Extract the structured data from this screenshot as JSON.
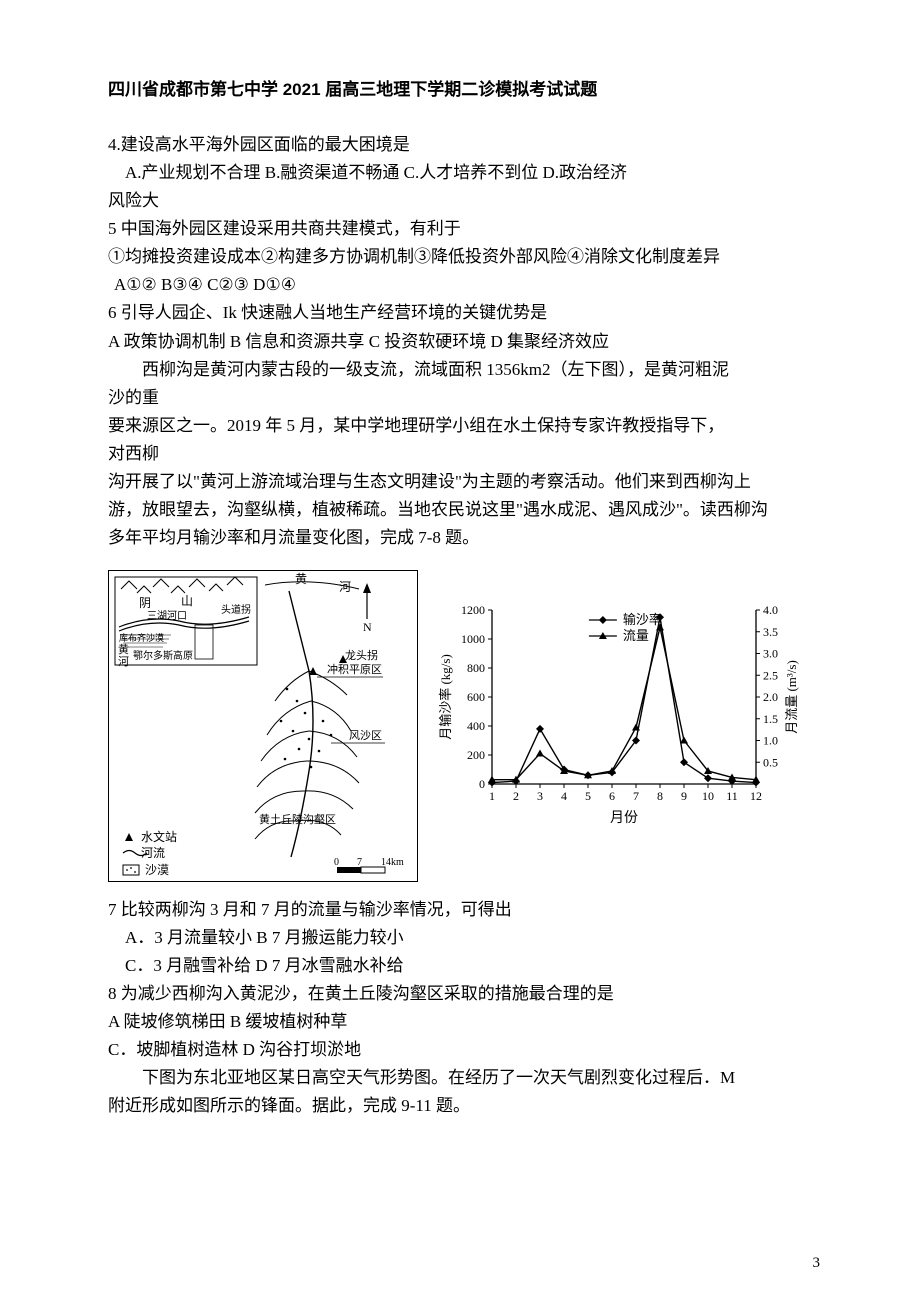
{
  "header": {
    "title": "四川省成都市第七中学 2021 届高三地理下学期二诊模拟考试试题"
  },
  "q4": {
    "stem": "4.建设高水平海外园区面临的最大困境是",
    "optA": "A.产业规划不合理",
    "optB": "B.融资渠道不畅通",
    "optC": "C.人才培养不到位",
    "optD": "D.政治经济",
    "optD2": "风险大"
  },
  "q5": {
    "stem": "5 中国海外园区建设采用共商共建模式，有利于",
    "items": "①均摊投资建设成本②构建多方协调机制③降低投资外部风险④消除文化制度差异",
    "optA": "A①②",
    "optB": "B③④",
    "optC": "C②③",
    "optD": "D①④"
  },
  "q6": {
    "stem": "6 引导人园企、Ik 快速融人当地生产经营环境的关键优势是",
    "optA": "A 政策协调机制",
    "optB": "B 信息和资源共享",
    "optC": "C 投资软硬环境",
    "optD": "D 集聚经济效应"
  },
  "passage1": {
    "l1": "西柳沟是黄河内蒙古段的一级支流，流域面积 1356km2（左下图），是黄河粗泥",
    "l2": "沙的重",
    "l3": "要来源区之一。2019 年 5 月，某中学地理研学小组在水土保持专家许教授指导下，",
    "l4": "对西柳",
    "l5": "沟开展了以\"黄河上游流域治理与生态文明建设\"为主题的考察活动。他们来到西柳沟上",
    "l6": "游，放眼望去，沟壑纵横，植被稀疏。当地农民说这里\"遇水成泥、遇风成沙\"。读西柳沟",
    "l7": "多年平均月输沙率和月流量变化图，完成 7-8 题。"
  },
  "map": {
    "labels": {
      "yinshan": "阴",
      "shan": "山",
      "sanhuhekou": "三湖河口",
      "kbqsm": "库布齐沙漠",
      "huang": "黄",
      "he": "河",
      "erdos": "鄂尔多斯高原",
      "toudaoguai": "头道拐",
      "longtouguai": "龙头拐",
      "river_top": "河",
      "river_mid": "黄",
      "chongji": "冲积平原区",
      "fengsha": "风沙区",
      "huangtu": "黄土丘陵沟壑区"
    },
    "legend": {
      "station": "水文站",
      "river": "河流",
      "desert": "沙漠"
    },
    "scale": {
      "zero": "0",
      "mid": "7",
      "end": "14km"
    },
    "north": "N"
  },
  "chart": {
    "type": "line",
    "y_left_label": "月输沙率 (kg/s)",
    "y_right_label": "月流量 (m³/s)",
    "x_label": "月份",
    "legend": {
      "a": "输沙率",
      "b": "流量"
    },
    "x_ticks": [
      "1",
      "2",
      "3",
      "4",
      "5",
      "6",
      "7",
      "8",
      "9",
      "10",
      "11",
      "12"
    ],
    "y_left_ticks": [
      "0",
      "200",
      "400",
      "600",
      "800",
      "1000",
      "1200"
    ],
    "y_right_ticks": [
      "0.5",
      "1.0",
      "1.5",
      "2.0",
      "2.5",
      "3.0",
      "3.5",
      "4.0"
    ],
    "y_left_lim": [
      0,
      1200
    ],
    "y_right_lim": [
      0,
      4.0
    ],
    "series_sediment": [
      {
        "x": 1,
        "y": 10
      },
      {
        "x": 2,
        "y": 20
      },
      {
        "x": 3,
        "y": 380
      },
      {
        "x": 4,
        "y": 100
      },
      {
        "x": 5,
        "y": 60
      },
      {
        "x": 6,
        "y": 80
      },
      {
        "x": 7,
        "y": 300
      },
      {
        "x": 8,
        "y": 1150
      },
      {
        "x": 9,
        "y": 150
      },
      {
        "x": 10,
        "y": 40
      },
      {
        "x": 11,
        "y": 20
      },
      {
        "x": 12,
        "y": 10
      }
    ],
    "series_flow": [
      {
        "x": 1,
        "y": 0.1
      },
      {
        "x": 2,
        "y": 0.1
      },
      {
        "x": 3,
        "y": 0.7
      },
      {
        "x": 4,
        "y": 0.3
      },
      {
        "x": 5,
        "y": 0.2
      },
      {
        "x": 6,
        "y": 0.3
      },
      {
        "x": 7,
        "y": 1.3
      },
      {
        "x": 8,
        "y": 3.6
      },
      {
        "x": 9,
        "y": 1.0
      },
      {
        "x": 10,
        "y": 0.3
      },
      {
        "x": 11,
        "y": 0.15
      },
      {
        "x": 12,
        "y": 0.1
      }
    ],
    "colors": {
      "axis": "#000000",
      "grid": "#ffffff",
      "sediment_line": "#000000",
      "flow_line": "#000000",
      "sediment_marker": "diamond",
      "flow_marker": "triangle"
    }
  },
  "q7": {
    "stem": "7 比较两柳沟 3 月和 7 月的流量与输沙率情况，可得出",
    "optA": "A．3 月流量较小",
    "optB": "B 7 月搬运能力较小",
    "optC": "C．3 月融雪补给",
    "optD": "D 7 月冰雪融水补给"
  },
  "q8": {
    "stem": "8 为减少西柳沟入黄泥沙，在黄土丘陵沟壑区采取的措施最合理的是",
    "optA": "A 陡坡修筑梯田",
    "optB": "B 缓坡植树种草",
    "optC": "C．坡脚植树造林",
    "optD": "D 沟谷打坝淤地"
  },
  "passage2": {
    "l1": "下图为东北亚地区某日高空天气形势图。在经历了一次天气剧烈变化过程后．M",
    "l2": "附近形成如图所示的锋面。据此，完成 9-11 题。"
  },
  "page_number": "3"
}
